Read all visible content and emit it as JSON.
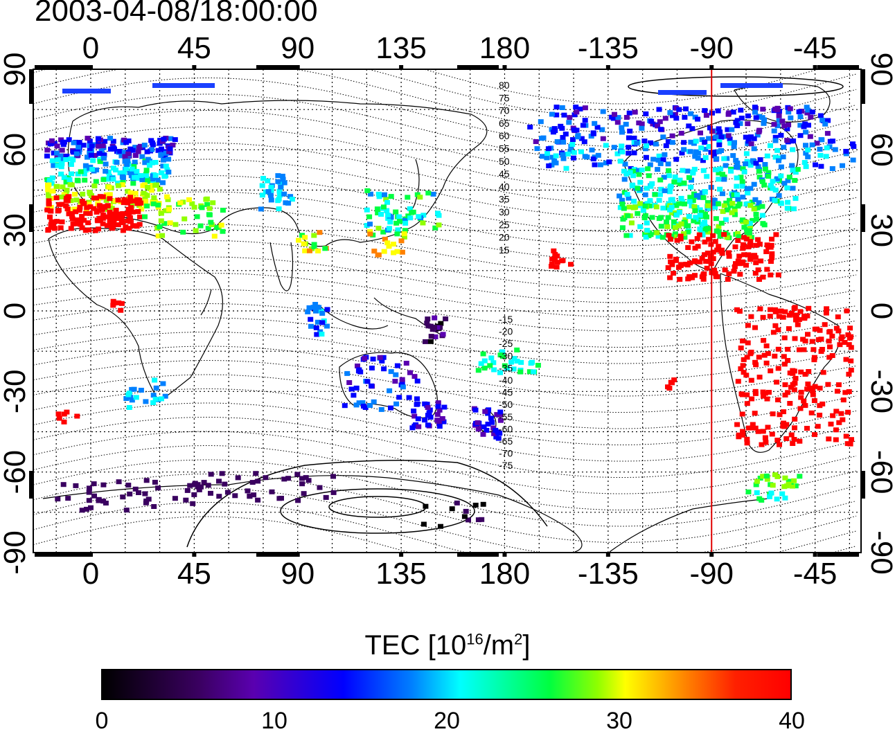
{
  "timestamp": "2003-04-08/18:00:00",
  "lon_labels": [
    "0",
    "45",
    "90",
    "135",
    "180",
    "-135",
    "-90",
    "-45"
  ],
  "lat_labels": [
    "90",
    "60",
    "30",
    "0",
    "-30",
    "-60",
    "-90"
  ],
  "contour_labels_north": [
    "80",
    "75",
    "70",
    "65",
    "60",
    "55",
    "50",
    "45",
    "40",
    "35",
    "30",
    "25",
    "20",
    "15"
  ],
  "contour_labels_south": [
    "-15",
    "-20",
    "-25",
    "-30",
    "-35",
    "-40",
    "-45",
    "-50",
    "-55",
    "-60",
    "-65",
    "-70",
    "-75"
  ],
  "colorbar": {
    "title_prefix": "TEC  [10",
    "title_exp1": "16",
    "title_mid": "/m",
    "title_exp2": "2",
    "title_suffix": "]",
    "ticks": [
      "0",
      "10",
      "20",
      "30",
      "40"
    ],
    "min": 0,
    "max": 40
  },
  "marker_longitude": -90,
  "colors": {
    "marker_line": "#e00000",
    "grid": "#000000"
  }
}
